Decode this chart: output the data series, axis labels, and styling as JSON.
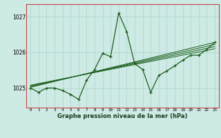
{
  "title": "Graphe pression niveau de la mer (hPa)",
  "background_color": "#ceeae4",
  "grid_color": "#aad4cc",
  "line_color": "#1a5c1a",
  "spine_color": "#cc4444",
  "xlim": [
    -0.5,
    23.5
  ],
  "ylim": [
    1024.45,
    1027.35
  ],
  "yticks": [
    1025,
    1026,
    1027
  ],
  "xtick_labels": [
    "0",
    "1",
    "2",
    "3",
    "4",
    "5",
    "6",
    "7",
    "8",
    "9",
    "10",
    "11",
    "12",
    "13",
    "14",
    "15",
    "16",
    "17",
    "18",
    "19",
    "20",
    "21",
    "22",
    "23"
  ],
  "main_series": [
    [
      0,
      1025.0
    ],
    [
      1,
      1024.88
    ],
    [
      2,
      1025.0
    ],
    [
      3,
      1025.0
    ],
    [
      4,
      1024.93
    ],
    [
      5,
      1024.82
    ],
    [
      6,
      1024.68
    ],
    [
      7,
      1025.22
    ],
    [
      8,
      1025.52
    ],
    [
      9,
      1025.97
    ],
    [
      10,
      1025.88
    ],
    [
      11,
      1027.1
    ],
    [
      12,
      1026.58
    ],
    [
      13,
      1025.68
    ],
    [
      14,
      1025.52
    ],
    [
      15,
      1024.88
    ],
    [
      16,
      1025.35
    ],
    [
      17,
      1025.48
    ],
    [
      18,
      1025.62
    ],
    [
      19,
      1025.78
    ],
    [
      20,
      1025.92
    ],
    [
      21,
      1025.92
    ],
    [
      22,
      1026.08
    ],
    [
      23,
      1026.28
    ]
  ],
  "trend_lines": [
    [
      [
        0,
        1025.02
      ],
      [
        23,
        1026.28
      ]
    ],
    [
      [
        0,
        1025.04
      ],
      [
        23,
        1026.22
      ]
    ],
    [
      [
        0,
        1025.06
      ],
      [
        23,
        1026.16
      ]
    ],
    [
      [
        0,
        1025.08
      ],
      [
        23,
        1026.1
      ]
    ]
  ],
  "figsize": [
    3.2,
    2.0
  ],
  "dpi": 100
}
